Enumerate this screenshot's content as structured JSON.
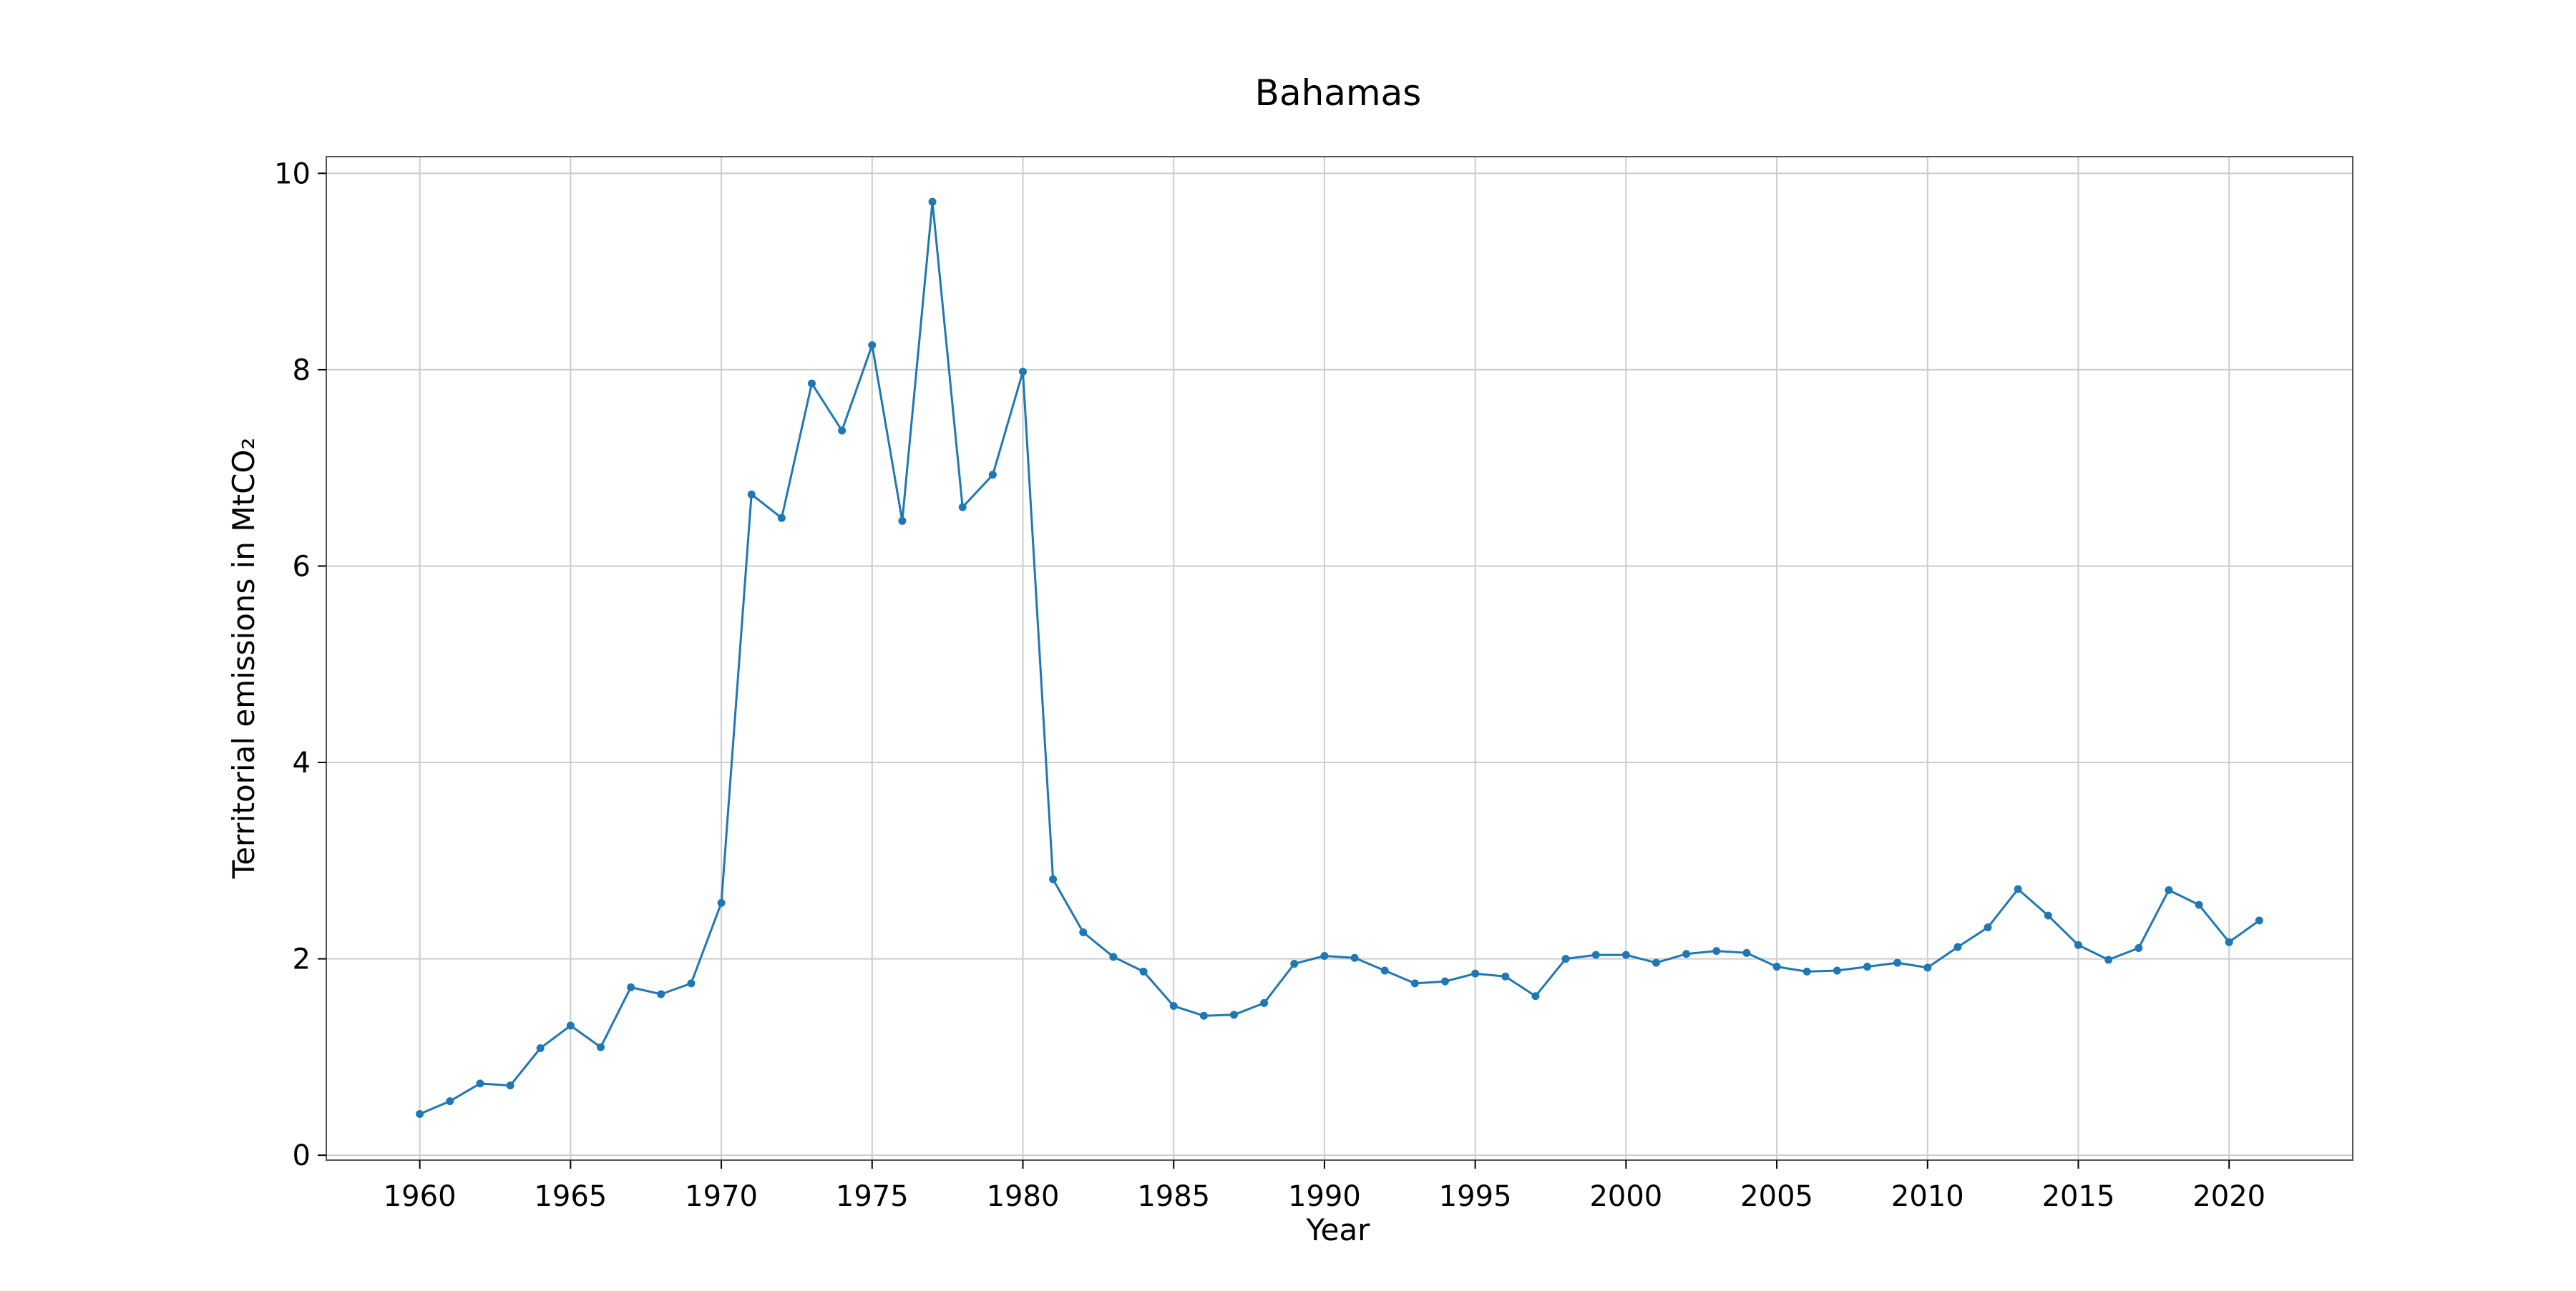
{
  "chart_data": {
    "type": "line",
    "title": "Bahamas",
    "xlabel": "Year",
    "ylabel": "Territorial emissions in MtCO₂",
    "xlim": [
      1956.9,
      2024.1
    ],
    "ylim": [
      -0.05,
      10.17
    ],
    "grid": true,
    "legend": "none",
    "x_ticks": [
      1960,
      1965,
      1970,
      1975,
      1980,
      1985,
      1990,
      1995,
      2000,
      2005,
      2010,
      2015,
      2020
    ],
    "y_ticks": [
      0,
      2,
      4,
      6,
      8,
      10
    ],
    "series": [
      {
        "color": "#1f77b4",
        "marker": "circle",
        "x": [
          1960,
          1961,
          1962,
          1963,
          1964,
          1965,
          1966,
          1967,
          1968,
          1969,
          1970,
          1971,
          1972,
          1973,
          1974,
          1975,
          1976,
          1977,
          1978,
          1979,
          1980,
          1981,
          1982,
          1983,
          1984,
          1985,
          1986,
          1987,
          1988,
          1989,
          1990,
          1991,
          1992,
          1993,
          1994,
          1995,
          1996,
          1997,
          1998,
          1999,
          2000,
          2001,
          2002,
          2003,
          2004,
          2005,
          2006,
          2007,
          2008,
          2009,
          2010,
          2011,
          2012,
          2013,
          2014,
          2015,
          2016,
          2017,
          2018,
          2019,
          2020,
          2021
        ],
        "y": [
          0.42,
          0.55,
          0.73,
          0.71,
          1.09,
          1.32,
          1.1,
          1.71,
          1.64,
          1.75,
          2.57,
          6.73,
          6.49,
          7.86,
          7.38,
          8.25,
          6.46,
          9.71,
          6.6,
          6.93,
          7.98,
          2.81,
          2.27,
          2.02,
          1.87,
          1.52,
          1.42,
          1.43,
          1.55,
          1.95,
          2.03,
          2.01,
          1.88,
          1.75,
          1.77,
          1.85,
          1.82,
          1.62,
          2.0,
          2.04,
          2.04,
          1.96,
          2.05,
          2.08,
          2.06,
          1.92,
          1.87,
          1.88,
          1.92,
          1.96,
          1.91,
          2.12,
          2.32,
          2.71,
          2.44,
          2.14,
          1.99,
          2.11,
          2.7,
          2.55,
          2.17,
          2.39
        ]
      }
    ]
  }
}
